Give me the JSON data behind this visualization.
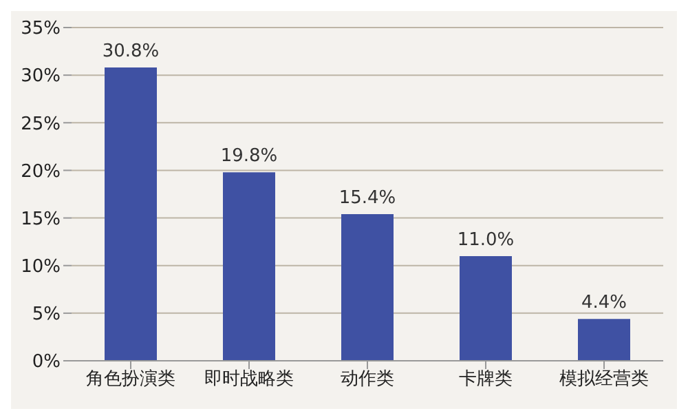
{
  "chart_data": {
    "type": "bar",
    "categories": [
      "角色扮演类",
      "即时战略类",
      "动作类",
      "卡牌类",
      "模拟经营类"
    ],
    "values": [
      30.8,
      19.8,
      15.4,
      11.0,
      4.4
    ],
    "value_labels": [
      "30.8%",
      "19.8%",
      "15.4%",
      "11.0%",
      "4.4%"
    ],
    "color": "#3f51a3",
    "ylim": [
      0,
      35
    ],
    "yticks": [
      {
        "value": 0,
        "label": "0%"
      },
      {
        "value": 5,
        "label": "5%"
      },
      {
        "value": 10,
        "label": "10%"
      },
      {
        "value": 15,
        "label": "15%"
      },
      {
        "value": 20,
        "label": "20%"
      },
      {
        "value": 25,
        "label": "25%"
      },
      {
        "value": 30,
        "label": "30%"
      },
      {
        "value": 35,
        "label": "35%"
      }
    ],
    "grid": "y"
  }
}
